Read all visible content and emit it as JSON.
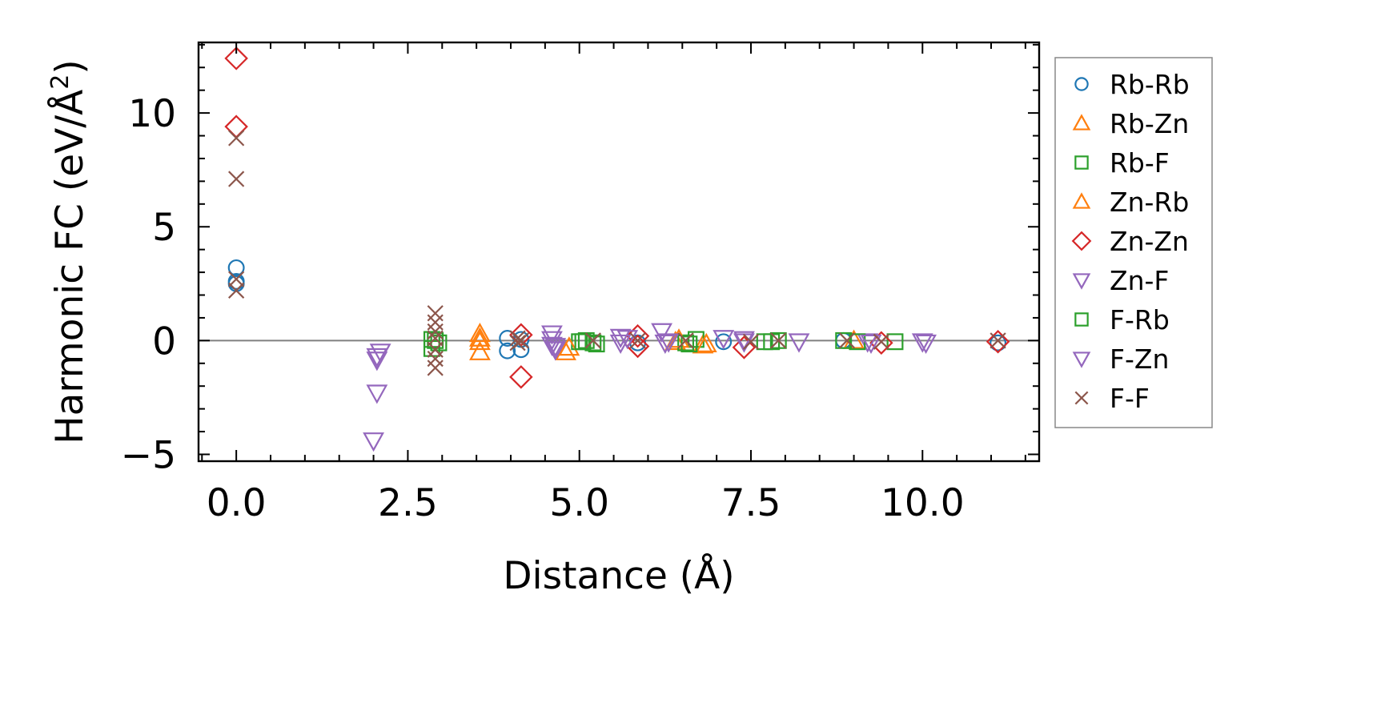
{
  "chart_data": {
    "type": "scatter",
    "title": "",
    "xlabel": "Distance (Å)",
    "ylabel": "Harmonic FC (eV/Å²)",
    "ylabel_base": "Harmonic FC (eV/Å",
    "ylabel_sup": "2",
    "ylabel_close": ")",
    "xlim": [
      -0.55,
      11.7
    ],
    "ylim": [
      -5.3,
      13.1
    ],
    "xticks": [
      0.0,
      2.5,
      5.0,
      7.5,
      10.0
    ],
    "xtick_labels": [
      "0.0",
      "2.5",
      "5.0",
      "7.5",
      "10.0"
    ],
    "yticks": [
      -5,
      0,
      5,
      10
    ],
    "ytick_labels": [
      "−5",
      "0",
      "5",
      "10"
    ],
    "x_minor_step": 0.5,
    "y_minor_step": 1,
    "grid": false,
    "reference_line_y": 0,
    "legend_position": "outside-right",
    "series": [
      {
        "name": "Rb-Rb",
        "marker": "circle",
        "color": "#1f77b4",
        "points": [
          [
            0.0,
            3.2
          ],
          [
            0.0,
            2.5
          ],
          [
            0.0,
            2.6
          ],
          [
            3.95,
            0.1
          ],
          [
            3.95,
            -0.45
          ],
          [
            4.15,
            0.05
          ],
          [
            4.15,
            -0.4
          ],
          [
            5.85,
            -0.1
          ],
          [
            7.1,
            -0.05
          ],
          [
            8.85,
            0.0
          ],
          [
            11.1,
            -0.1
          ]
        ]
      },
      {
        "name": "Rb-Zn",
        "marker": "triangle-up",
        "color": "#ff7f0e",
        "points": [
          [
            3.55,
            0.3
          ],
          [
            3.55,
            -0.05
          ],
          [
            3.55,
            -0.5
          ],
          [
            4.8,
            -0.5
          ],
          [
            6.4,
            -0.05
          ],
          [
            6.8,
            -0.2
          ],
          [
            9.0,
            0.0
          ]
        ]
      },
      {
        "name": "Rb-F",
        "marker": "square",
        "color": "#2ca02c",
        "points": [
          [
            2.85,
            -0.35
          ],
          [
            2.9,
            0.0
          ],
          [
            2.95,
            -0.1
          ],
          [
            5.0,
            -0.05
          ],
          [
            5.1,
            0.0
          ],
          [
            5.2,
            -0.1
          ],
          [
            6.55,
            -0.1
          ],
          [
            6.7,
            0.05
          ],
          [
            7.7,
            -0.05
          ],
          [
            7.9,
            0.0
          ],
          [
            8.85,
            0.0
          ],
          [
            9.6,
            -0.05
          ]
        ]
      },
      {
        "name": "Zn-Rb",
        "marker": "triangle-up",
        "color": "#ff7f0e",
        "points": [
          [
            3.55,
            0.1
          ],
          [
            4.85,
            -0.3
          ],
          [
            6.45,
            0.05
          ],
          [
            6.85,
            -0.15
          ]
        ]
      },
      {
        "name": "Zn-Zn",
        "marker": "diamond",
        "color": "#d62728",
        "points": [
          [
            0.0,
            12.4
          ],
          [
            0.0,
            9.4
          ],
          [
            4.15,
            0.25
          ],
          [
            4.15,
            -1.6
          ],
          [
            5.85,
            0.2
          ],
          [
            5.85,
            -0.25
          ],
          [
            7.4,
            -0.3
          ],
          [
            9.4,
            -0.1
          ],
          [
            11.1,
            -0.05
          ]
        ]
      },
      {
        "name": "Zn-F",
        "marker": "triangle-down",
        "color": "#9467bd",
        "points": [
          [
            2.05,
            -0.7
          ],
          [
            2.1,
            -0.5
          ],
          [
            2.05,
            -2.3
          ],
          [
            2.0,
            -4.4
          ],
          [
            4.6,
            0.3
          ],
          [
            4.6,
            -0.2
          ],
          [
            4.65,
            -0.4
          ],
          [
            5.6,
            0.15
          ],
          [
            6.2,
            0.4
          ],
          [
            6.3,
            -0.05
          ],
          [
            7.1,
            0.1
          ],
          [
            7.4,
            0.05
          ],
          [
            8.2,
            -0.05
          ],
          [
            9.2,
            -0.05
          ],
          [
            10.0,
            -0.05
          ]
        ]
      },
      {
        "name": "F-Rb",
        "marker": "square",
        "color": "#2ca02c",
        "points": [
          [
            2.85,
            0.05
          ],
          [
            5.05,
            -0.05
          ],
          [
            5.25,
            -0.15
          ],
          [
            6.6,
            -0.15
          ],
          [
            7.8,
            -0.05
          ],
          [
            9.05,
            -0.05
          ]
        ]
      },
      {
        "name": "F-Zn",
        "marker": "triangle-down",
        "color": "#9467bd",
        "points": [
          [
            2.05,
            -0.85
          ],
          [
            4.6,
            0.05
          ],
          [
            4.65,
            -0.25
          ],
          [
            5.6,
            -0.1
          ],
          [
            5.7,
            0.1
          ],
          [
            6.25,
            -0.1
          ],
          [
            7.4,
            -0.05
          ],
          [
            9.25,
            -0.1
          ],
          [
            10.05,
            -0.1
          ]
        ]
      },
      {
        "name": "F-F",
        "marker": "cross",
        "color": "#8c564b",
        "points": [
          [
            0.0,
            8.9
          ],
          [
            0.0,
            7.1
          ],
          [
            0.0,
            2.7
          ],
          [
            0.0,
            2.2
          ],
          [
            2.9,
            1.2
          ],
          [
            2.9,
            0.8
          ],
          [
            2.9,
            0.4
          ],
          [
            2.9,
            0.1
          ],
          [
            2.9,
            -0.4
          ],
          [
            2.9,
            -0.8
          ],
          [
            2.9,
            -1.2
          ],
          [
            4.1,
            0.1
          ],
          [
            4.1,
            -0.1
          ],
          [
            4.15,
            0.0
          ],
          [
            5.2,
            0.0
          ],
          [
            5.85,
            0.0
          ],
          [
            6.55,
            0.0
          ],
          [
            7.5,
            -0.05
          ],
          [
            7.9,
            0.0
          ],
          [
            8.9,
            0.0
          ],
          [
            9.4,
            -0.05
          ],
          [
            11.1,
            0.0
          ]
        ]
      }
    ]
  }
}
